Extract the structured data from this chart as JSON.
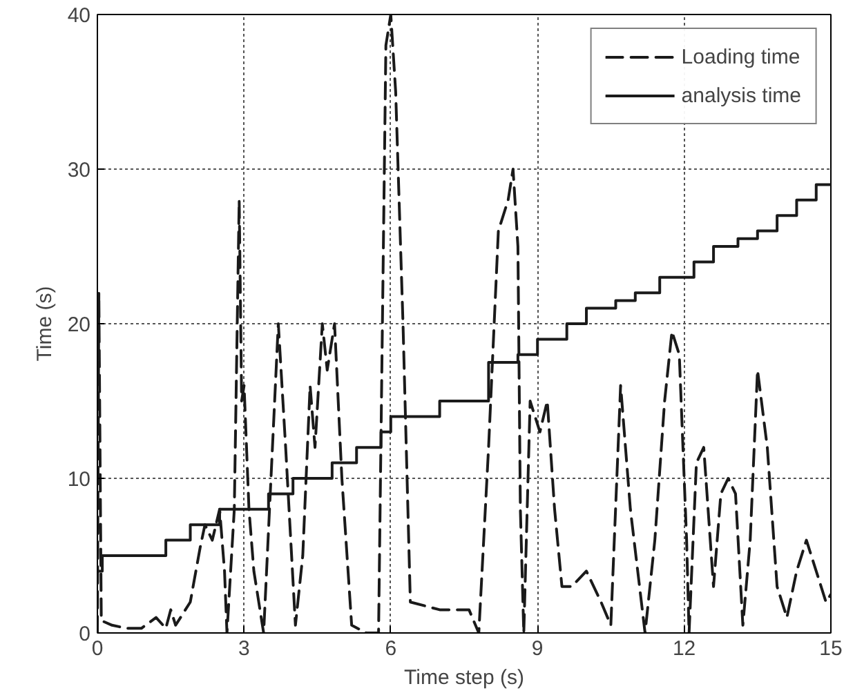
{
  "chart_data": {
    "type": "line",
    "xlabel": "Time step (s)",
    "ylabel": "Time (s)",
    "xlim": [
      0,
      15
    ],
    "ylim": [
      0,
      40
    ],
    "xticks": [
      0,
      3,
      6,
      9,
      12,
      15
    ],
    "yticks": [
      0,
      10,
      20,
      30,
      40
    ],
    "grid": true,
    "legend": "top right",
    "series": [
      {
        "name": "Loading time",
        "line_style": "dashed",
        "color": "#1a1a1a",
        "x": [
          0,
          0.03,
          0.08,
          0.3,
          0.6,
          0.9,
          1.2,
          1.4,
          1.5,
          1.6,
          1.9,
          2.1,
          2.2,
          2.35,
          2.5,
          2.6,
          2.65,
          2.8,
          2.9,
          2.95,
          3.0,
          3.1,
          3.2,
          3.4,
          3.55,
          3.7,
          3.85,
          4.05,
          4.2,
          4.35,
          4.45,
          4.6,
          4.7,
          4.85,
          5.0,
          5.2,
          5.5,
          5.75,
          5.9,
          6.0,
          6.1,
          6.25,
          6.4,
          7.0,
          7.6,
          7.8,
          8.0,
          8.2,
          8.4,
          8.5,
          8.6,
          8.65,
          8.72,
          8.85,
          9.05,
          9.2,
          9.35,
          9.5,
          9.7,
          10.0,
          10.3,
          10.5,
          10.7,
          10.9,
          11.2,
          11.4,
          11.6,
          11.75,
          11.9,
          12.05,
          12.1,
          12.25,
          12.4,
          12.6,
          12.75,
          12.9,
          13.05,
          13.2,
          13.35,
          13.5,
          13.7,
          13.9,
          14.1,
          14.3,
          14.5,
          14.7,
          14.9,
          15.0
        ],
        "values": [
          0,
          22,
          0.8,
          0.5,
          0.3,
          0.3,
          1.0,
          0.3,
          1.5,
          0.5,
          2.0,
          5.5,
          7.0,
          6.0,
          8.0,
          4.0,
          0,
          8.0,
          28.0,
          15.0,
          16.0,
          8.0,
          4.0,
          0,
          10.0,
          20.0,
          12.0,
          0.5,
          5.0,
          16.0,
          12.0,
          20.0,
          17.0,
          20.0,
          10.0,
          0.5,
          0,
          0,
          38.0,
          40.0,
          35.0,
          20.0,
          2.0,
          1.5,
          1.5,
          0,
          12.0,
          26.0,
          28.0,
          30.0,
          25.0,
          8.0,
          0,
          15.0,
          13.0,
          15.0,
          8.0,
          3.0,
          3.0,
          4.0,
          2.0,
          0.5,
          16.0,
          8.0,
          0,
          6.0,
          15.0,
          19.5,
          18.0,
          6.0,
          0,
          11.0,
          12.0,
          3.0,
          9.0,
          10.0,
          9.0,
          0.5,
          6.0,
          17.0,
          12.0,
          3.0,
          1.0,
          4.0,
          6.0,
          4.0,
          2.0,
          2.5
        ]
      },
      {
        "name": "analysis time",
        "type": "step",
        "line_style": "solid",
        "color": "#1a1a1a",
        "x": [
          0,
          0.1,
          1.4,
          1.9,
          2.5,
          3.5,
          4.0,
          4.8,
          5.3,
          5.8,
          6.0,
          7.0,
          8.0,
          8.6,
          9.0,
          9.6,
          10.0,
          10.6,
          11.0,
          11.5,
          12.2,
          12.6,
          13.1,
          13.5,
          13.9,
          14.3,
          14.7,
          15.0
        ],
        "values": [
          4,
          5,
          6,
          7,
          8,
          9,
          10,
          11,
          12,
          13,
          14,
          15,
          17.5,
          18,
          19,
          20,
          21,
          21.5,
          22,
          23,
          24,
          25,
          25.5,
          26,
          27,
          28,
          29,
          29
        ]
      }
    ]
  }
}
